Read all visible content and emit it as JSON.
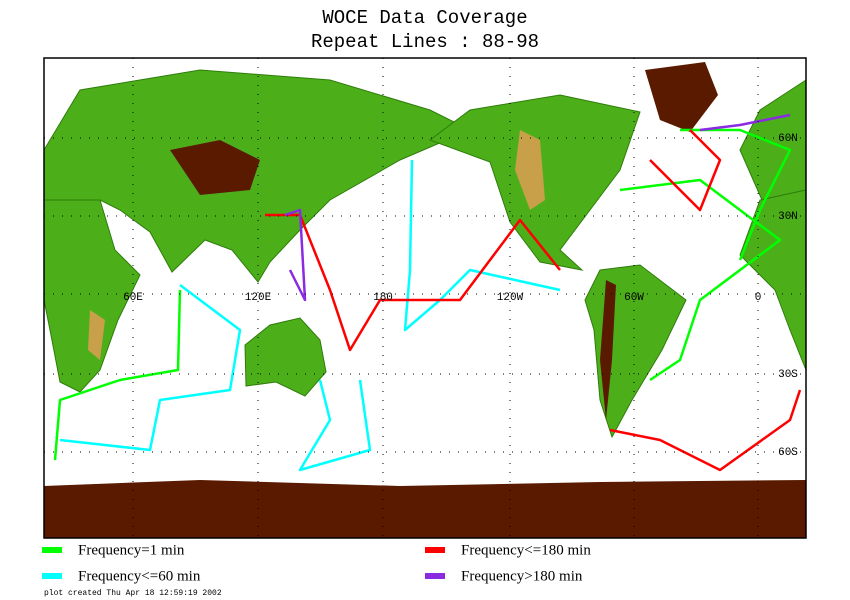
{
  "map": {
    "title": "WOCE Data Coverage",
    "subtitle": "Repeat Lines : 88-98",
    "lon_labels": [
      "60E",
      "120E",
      "180",
      "120W",
      "60W",
      "0"
    ],
    "lat_labels": [
      "60N",
      "30N",
      "30S",
      "60S"
    ],
    "legend": [
      {
        "label": "Frequency=1 min",
        "color": "#00ff00"
      },
      {
        "label": "Frequency<=60 min",
        "color": "#00ffff"
      },
      {
        "label": "Frequency<=180 min",
        "color": "#ff0000"
      },
      {
        "label": "Frequency>180 min",
        "color": "#8a2be2"
      }
    ],
    "footer": "plot created Thu Apr 18 12:59:19 2002"
  }
}
